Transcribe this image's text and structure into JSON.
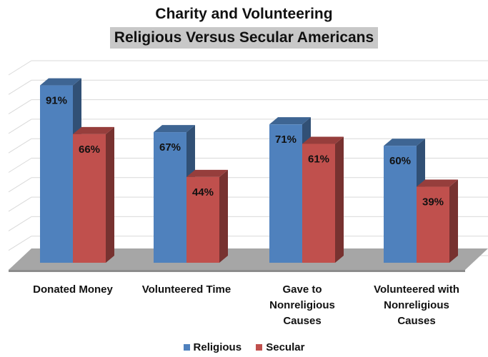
{
  "chart_data": {
    "type": "bar",
    "title": "Charity and Volunteering",
    "subtitle": "Religious Versus Secular Americans",
    "categories": [
      [
        "Donated Money"
      ],
      [
        "Volunteered Time"
      ],
      [
        "Gave to",
        "Nonreligious",
        "Causes"
      ],
      [
        "Volunteered with",
        "Nonreligious",
        "Causes"
      ]
    ],
    "series": [
      {
        "name": "Religious",
        "values": [
          91,
          67,
          71,
          60
        ],
        "labels": [
          "91%",
          "67%",
          "71%",
          "60%"
        ],
        "color": "#4f81bd"
      },
      {
        "name": "Secular",
        "values": [
          66,
          44,
          61,
          39
        ],
        "labels": [
          "66%",
          "44%",
          "61%",
          "39%"
        ],
        "color": "#c0504d"
      }
    ],
    "ylim": [
      0,
      100
    ],
    "grid": true,
    "legend_position": "bottom",
    "three_d": true
  }
}
